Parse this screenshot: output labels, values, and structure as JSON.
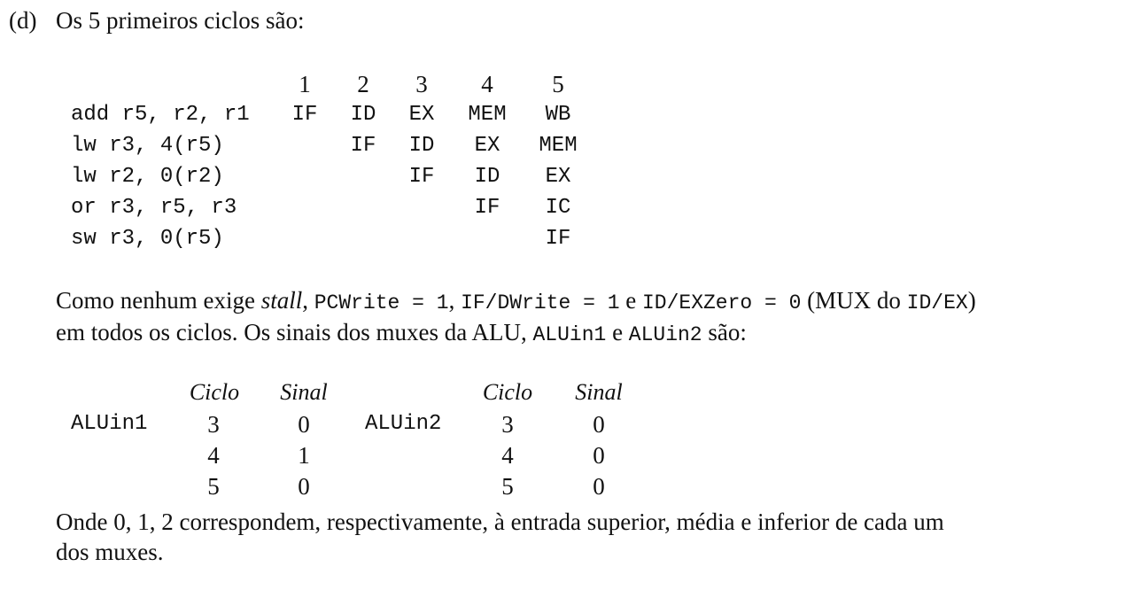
{
  "heading": {
    "label": "(d)",
    "text": "Os 5 primeiros ciclos são:"
  },
  "pipeline": {
    "cycles": [
      "1",
      "2",
      "3",
      "4",
      "5"
    ],
    "rows": [
      {
        "instr": "add r5, r2, r1",
        "stages": [
          "IF",
          "ID",
          "EX",
          "MEM",
          "WB"
        ]
      },
      {
        "instr": "lw r3, 4(r5)",
        "stages": [
          "",
          "IF",
          "ID",
          "EX",
          "MEM"
        ]
      },
      {
        "instr": "lw r2, 0(r2)",
        "stages": [
          "",
          "",
          "IF",
          "ID",
          "EX"
        ]
      },
      {
        "instr": "or r3, r5, r3",
        "stages": [
          "",
          "",
          "",
          "IF",
          "IC"
        ]
      },
      {
        "instr": "sw r3, 0(r5)",
        "stages": [
          "",
          "",
          "",
          "",
          "IF"
        ]
      }
    ]
  },
  "paragraph1": {
    "t1": "Como nenhum exige ",
    "stall": "stall",
    "t2": ", ",
    "pcwrite": "PCWrite = 1",
    "t3": ", ",
    "ifdwrite": "IF/DWrite = 1",
    "t4": " e ",
    "idexzero": "ID/EXZero = 0",
    "t5": " (MUX do ",
    "idex": "ID/EX",
    "t6": ")",
    "line2a": "em todos os ciclos. Os sinais dos muxes da ALU, ",
    "aluin1": "ALUin1",
    "line2b": " e ",
    "aluin2": "ALUin2",
    "line2c": " são:"
  },
  "signals": {
    "ciclo_header": "Ciclo",
    "sinal_header": "Sinal",
    "alu1": {
      "name": "ALUin1",
      "rows": [
        {
          "ciclo": "3",
          "sinal": "0"
        },
        {
          "ciclo": "4",
          "sinal": "1"
        },
        {
          "ciclo": "5",
          "sinal": "0"
        }
      ]
    },
    "alu2": {
      "name": "ALUin2",
      "rows": [
        {
          "ciclo": "3",
          "sinal": "0"
        },
        {
          "ciclo": "4",
          "sinal": "0"
        },
        {
          "ciclo": "5",
          "sinal": "0"
        }
      ]
    }
  },
  "footer": {
    "line1": "Onde 0, 1, 2 correspondem, respectivamente, à entrada superior, média e inferior de cada um",
    "line2": "dos muxes."
  }
}
